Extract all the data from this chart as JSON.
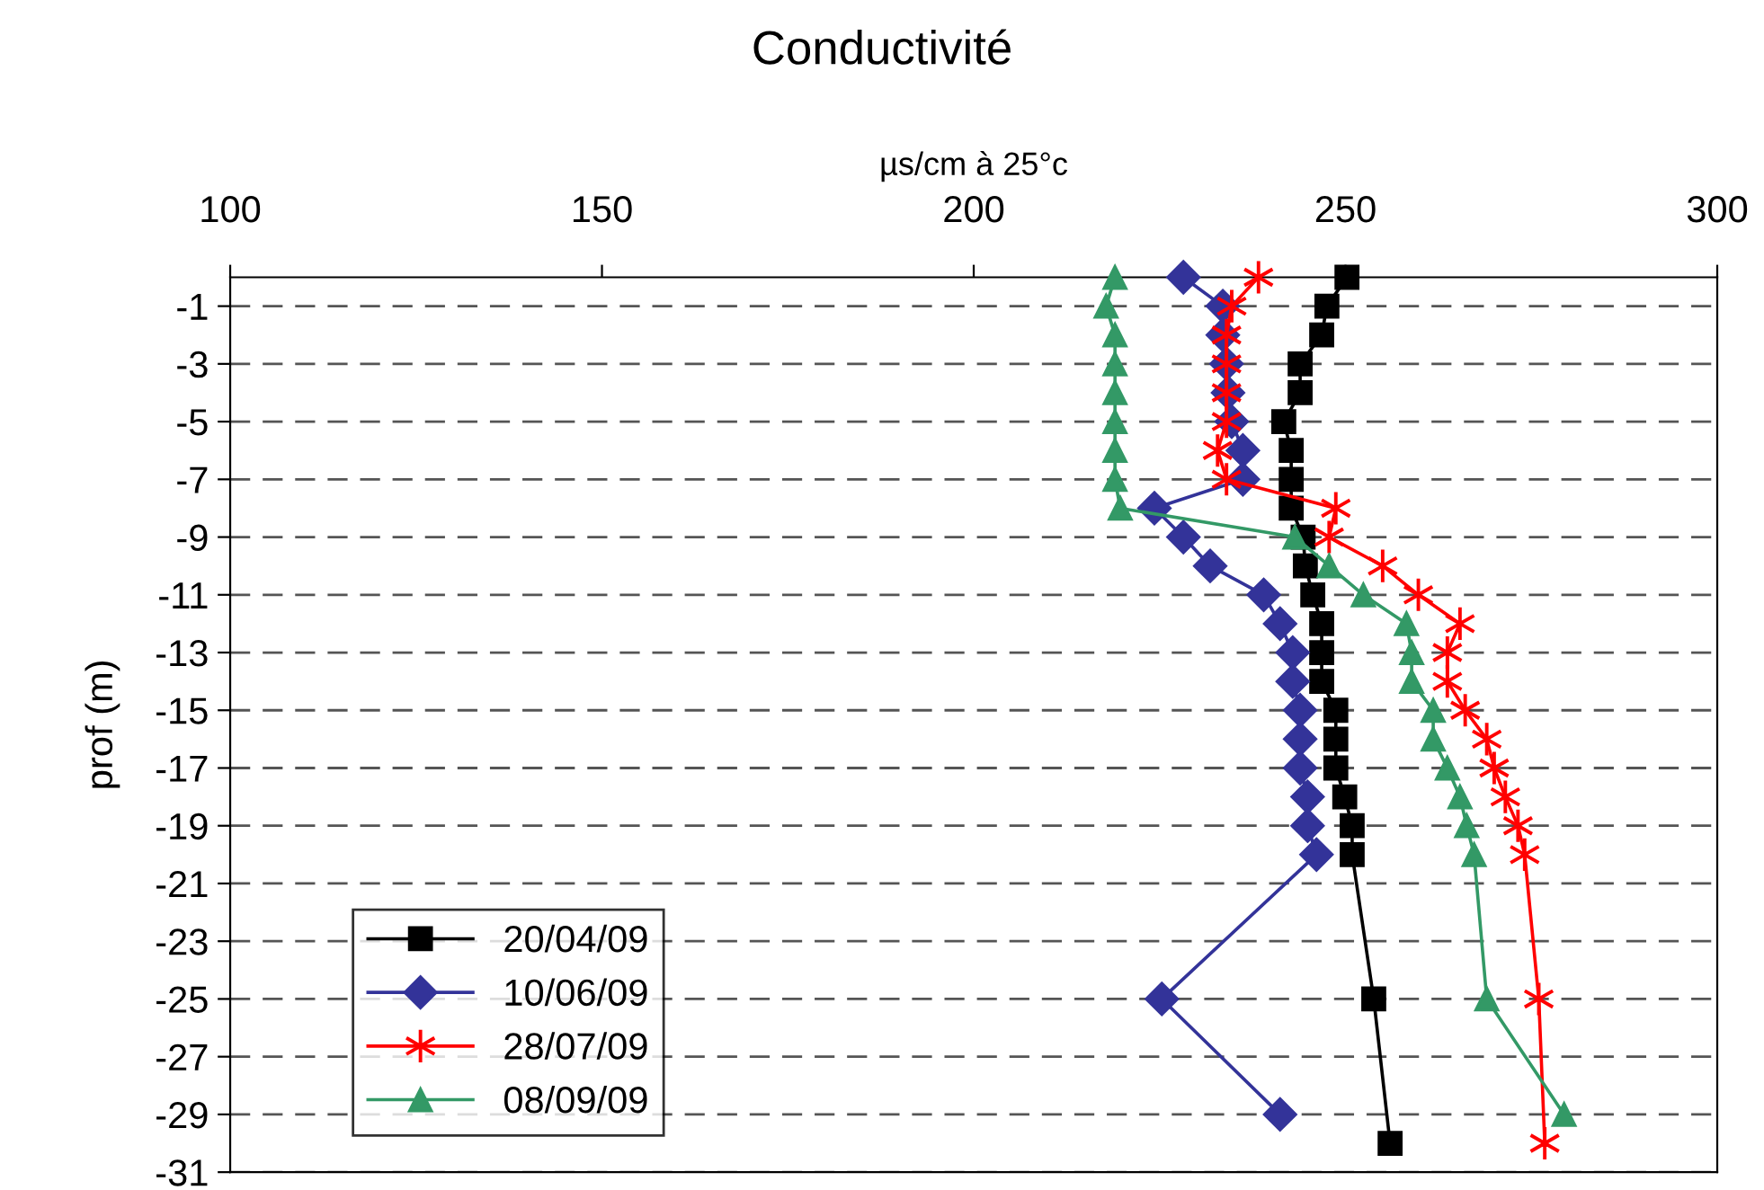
{
  "chart_data": {
    "type": "line",
    "title": "Conductivité",
    "xlabel": "µs/cm à 25°c",
    "ylabel": "prof (m)",
    "orientation": "horizontal",
    "xlim": [
      100,
      300
    ],
    "xticks": [
      100,
      150,
      200,
      250,
      300
    ],
    "ylim": [
      -31,
      0
    ],
    "yticks": [
      -1,
      -3,
      -5,
      -7,
      -9,
      -11,
      -13,
      -15,
      -17,
      -19,
      -21,
      -23,
      -25,
      -27,
      -29,
      -31
    ],
    "grid": "y",
    "legend": "bottom left",
    "line_style": "solid",
    "series": [
      {
        "name": "20/04/09",
        "color": "#000000",
        "marker": "square",
        "x": [
          0,
          -1,
          -2,
          -3,
          -4,
          -5,
          -6,
          -7,
          -8,
          -9,
          -10,
          -11,
          -12,
          -13,
          -14,
          -15,
          -16,
          -17,
          -18,
          -19,
          -20,
          -25,
          -30
        ],
        "values": [
          250.2,
          247.5,
          246.8,
          243.9,
          243.9,
          241.7,
          242.7,
          242.7,
          242.7,
          244.3,
          244.6,
          245.6,
          246.8,
          246.8,
          246.8,
          248.7,
          248.7,
          248.7,
          249.9,
          250.9,
          250.9,
          253.8,
          256
        ]
      },
      {
        "name": "10/06/09",
        "color": "#333399",
        "marker": "diamond",
        "x": [
          0,
          -1,
          -2,
          -3,
          -4,
          -5,
          -6,
          -7,
          -8,
          -9,
          -10,
          -11,
          -12,
          -13,
          -14,
          -15,
          -16,
          -17,
          -18,
          -19,
          -20,
          -25,
          -29
        ],
        "values": [
          228.2,
          233.5,
          233.5,
          234,
          234.2,
          234.7,
          236.2,
          236.2,
          224.3,
          228.2,
          231.8,
          239,
          241.2,
          242.9,
          242.9,
          243.9,
          243.9,
          243.9,
          244.9,
          244.9,
          246.1,
          225.3,
          241.2
        ]
      },
      {
        "name": "28/07/09",
        "color": "#ff0000",
        "marker": "cross",
        "x": [
          0,
          -1,
          -2,
          -3,
          -4,
          -5,
          -6,
          -7,
          -8,
          -9,
          -10,
          -11,
          -12,
          -13,
          -14,
          -15,
          -16,
          -17,
          -18,
          -19,
          -20,
          -25,
          -30
        ],
        "values": [
          238.3,
          234.7,
          234,
          234,
          234,
          234,
          232.8,
          234,
          248.7,
          247.8,
          255,
          259.8,
          265.4,
          263.7,
          263.7,
          266.1,
          269,
          270,
          271.5,
          273.2,
          274.1,
          276,
          276.8
        ]
      },
      {
        "name": "08/09/09",
        "color": "#339966",
        "marker": "triangle",
        "x": [
          0,
          -1,
          -2,
          -3,
          -4,
          -5,
          -6,
          -7,
          -8,
          -9,
          -10,
          -11,
          -12,
          -13,
          -14,
          -15,
          -16,
          -17,
          -18,
          -19,
          -20,
          -25,
          -29
        ],
        "values": [
          219,
          217.8,
          219,
          219,
          219,
          219,
          219,
          219,
          219.7,
          243.2,
          247.8,
          252.4,
          258.2,
          258.9,
          258.9,
          261.8,
          261.8,
          263.7,
          265.4,
          266.3,
          267.3,
          269,
          279.4
        ]
      }
    ]
  }
}
